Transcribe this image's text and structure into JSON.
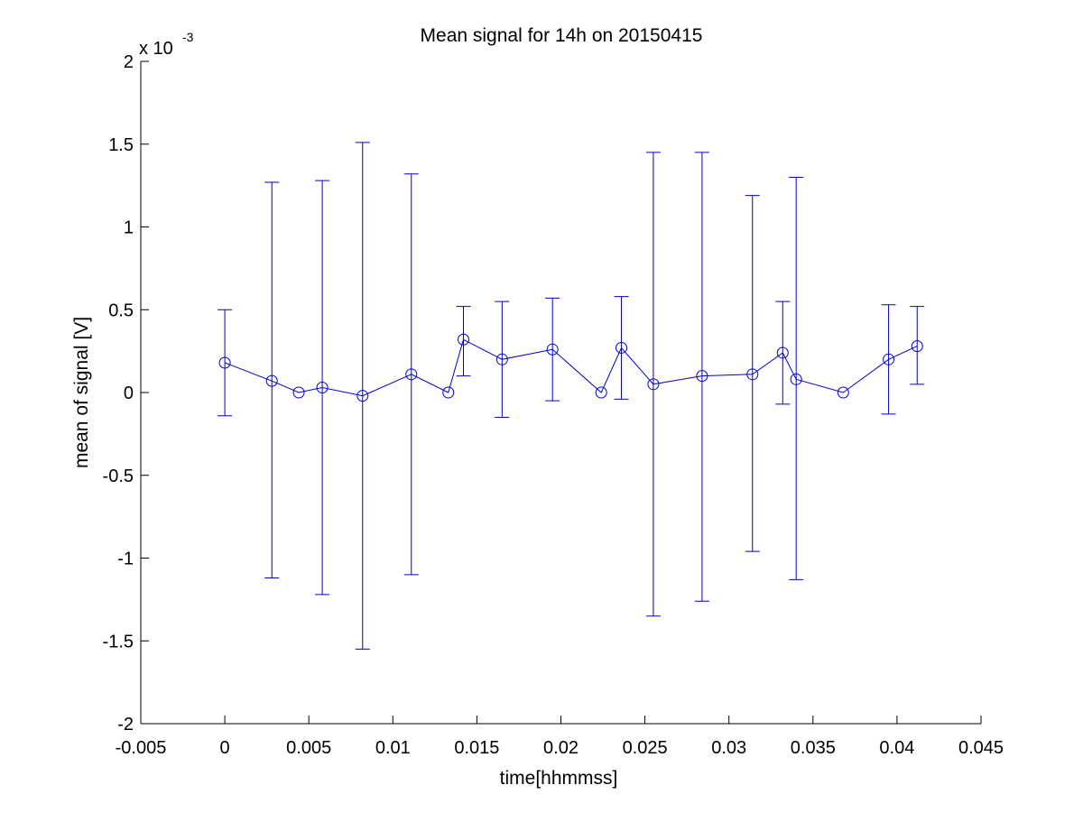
{
  "chart_data": {
    "type": "scatter",
    "title": "Mean signal for 14h on 20150415",
    "xlabel": "time[hhmmss]",
    "ylabel": "mean of signal [V]",
    "y_multiplier_base": "x 10",
    "y_multiplier_exponent": "-3",
    "xlim": [
      -0.005,
      0.045
    ],
    "ylim": [
      -2,
      2
    ],
    "x_ticks": [
      -0.005,
      0,
      0.005,
      0.01,
      0.015,
      0.02,
      0.025,
      0.03,
      0.035,
      0.04,
      0.045
    ],
    "x_tick_labels": [
      "-0.005",
      "0",
      "0.005",
      "0.01",
      "0.015",
      "0.02",
      "0.025",
      "0.03",
      "0.035",
      "0.04",
      "0.045"
    ],
    "y_ticks": [
      -2,
      -1.5,
      -1,
      -0.5,
      0,
      0.5,
      1,
      1.5,
      2
    ],
    "y_tick_labels": [
      "-2",
      "-1.5",
      "-1",
      "-0.5",
      "0",
      "0.5",
      "1",
      "1.5",
      "2"
    ],
    "grid": false,
    "series": [
      {
        "color": "#0000cc",
        "marker": "circle",
        "line": true,
        "points": [
          {
            "x": 0.0,
            "y": 0.18,
            "err_low": -0.14,
            "err_high": 0.5
          },
          {
            "x": 0.0028,
            "y": 0.07,
            "err_low": -1.12,
            "err_high": 1.27
          },
          {
            "x": 0.0044,
            "y": 0.0
          },
          {
            "x": 0.0058,
            "y": 0.03,
            "err_low": -1.22,
            "err_high": 1.28
          },
          {
            "x": 0.0082,
            "y": -0.02,
            "err_low": -1.55,
            "err_high": 1.51
          },
          {
            "x": 0.0111,
            "y": 0.11,
            "err_low": -1.1,
            "err_high": 1.32
          },
          {
            "x": 0.0133,
            "y": 0.0
          },
          {
            "x": 0.0142,
            "y": 0.32,
            "err_low": 0.1,
            "err_high": 0.52
          },
          {
            "x": 0.0165,
            "y": 0.2,
            "err_low": -0.15,
            "err_high": 0.55
          },
          {
            "x": 0.0195,
            "y": 0.26,
            "err_low": -0.05,
            "err_high": 0.57
          },
          {
            "x": 0.0224,
            "y": 0.0
          },
          {
            "x": 0.0236,
            "y": 0.27,
            "err_low": -0.04,
            "err_high": 0.58
          },
          {
            "x": 0.0255,
            "y": 0.05,
            "err_low": -1.35,
            "err_high": 1.45
          },
          {
            "x": 0.0284,
            "y": 0.1,
            "err_low": -1.26,
            "err_high": 1.45
          },
          {
            "x": 0.0314,
            "y": 0.11,
            "err_low": -0.96,
            "err_high": 1.19
          },
          {
            "x": 0.0332,
            "y": 0.24,
            "err_low": -0.07,
            "err_high": 0.55
          },
          {
            "x": 0.034,
            "y": 0.08,
            "err_low": -1.13,
            "err_high": 1.3
          },
          {
            "x": 0.0368,
            "y": 0.0
          },
          {
            "x": 0.0395,
            "y": 0.2,
            "err_low": -0.13,
            "err_high": 0.53
          },
          {
            "x": 0.0412,
            "y": 0.28,
            "err_low": 0.05,
            "err_high": 0.52
          }
        ]
      }
    ]
  }
}
